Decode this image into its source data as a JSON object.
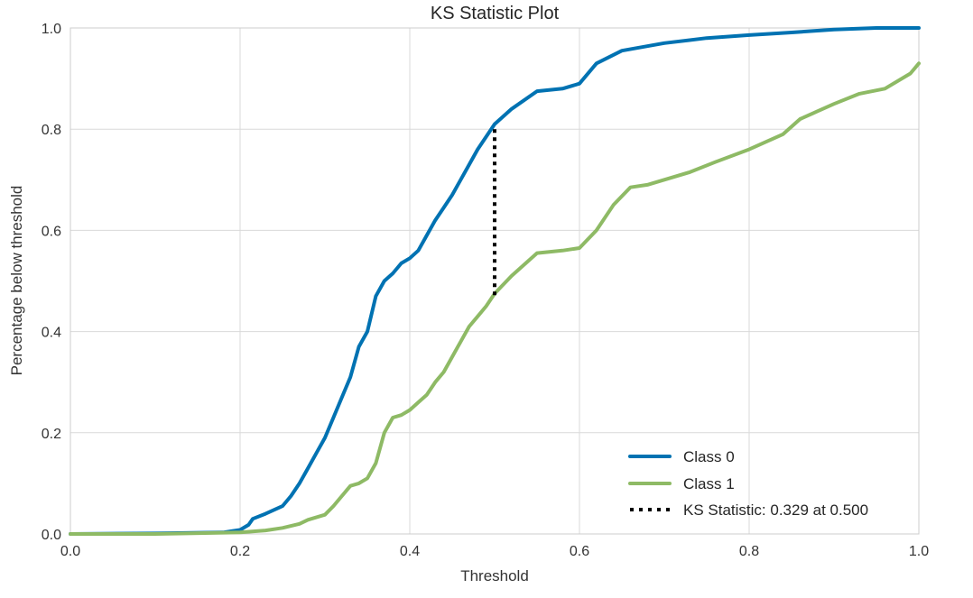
{
  "chart_data": {
    "type": "line",
    "title": "KS Statistic Plot",
    "xlabel": "Threshold",
    "ylabel": "Percentage below threshold",
    "xlim": [
      0.0,
      1.0
    ],
    "ylim": [
      0.0,
      1.0
    ],
    "grid": true,
    "legend_position": "bottom-right",
    "x_ticks": [
      "0.0",
      "0.2",
      "0.4",
      "0.6",
      "0.8",
      "1.0"
    ],
    "y_ticks": [
      "0.0",
      "0.2",
      "0.4",
      "0.6",
      "0.8",
      "1.0"
    ],
    "series": [
      {
        "name": "Class 0",
        "color": "#0072B2",
        "x": [
          0.0,
          0.1,
          0.18,
          0.2,
          0.21,
          0.215,
          0.23,
          0.25,
          0.26,
          0.27,
          0.28,
          0.29,
          0.3,
          0.31,
          0.32,
          0.33,
          0.34,
          0.35,
          0.36,
          0.37,
          0.38,
          0.39,
          0.4,
          0.41,
          0.42,
          0.43,
          0.44,
          0.45,
          0.46,
          0.47,
          0.48,
          0.49,
          0.5,
          0.52,
          0.55,
          0.58,
          0.6,
          0.62,
          0.65,
          0.7,
          0.75,
          0.8,
          0.85,
          0.9,
          0.95,
          1.0
        ],
        "y": [
          0.0,
          0.001,
          0.003,
          0.008,
          0.018,
          0.03,
          0.04,
          0.055,
          0.075,
          0.1,
          0.13,
          0.16,
          0.19,
          0.23,
          0.27,
          0.31,
          0.37,
          0.4,
          0.47,
          0.5,
          0.515,
          0.535,
          0.545,
          0.56,
          0.59,
          0.62,
          0.645,
          0.67,
          0.7,
          0.73,
          0.76,
          0.785,
          0.81,
          0.84,
          0.875,
          0.88,
          0.89,
          0.93,
          0.955,
          0.97,
          0.98,
          0.986,
          0.991,
          0.997,
          1.0,
          1.0
        ]
      },
      {
        "name": "Class 1",
        "color": "#8EBA65",
        "x": [
          0.0,
          0.1,
          0.2,
          0.23,
          0.25,
          0.27,
          0.28,
          0.3,
          0.31,
          0.32,
          0.33,
          0.34,
          0.35,
          0.36,
          0.37,
          0.38,
          0.39,
          0.4,
          0.41,
          0.42,
          0.43,
          0.44,
          0.45,
          0.46,
          0.47,
          0.48,
          0.49,
          0.5,
          0.52,
          0.55,
          0.58,
          0.6,
          0.62,
          0.64,
          0.66,
          0.68,
          0.7,
          0.73,
          0.76,
          0.8,
          0.84,
          0.86,
          0.88,
          0.9,
          0.93,
          0.96,
          0.99,
          1.0
        ],
        "y": [
          0.0,
          0.0,
          0.003,
          0.007,
          0.012,
          0.02,
          0.028,
          0.038,
          0.055,
          0.075,
          0.095,
          0.1,
          0.11,
          0.14,
          0.2,
          0.23,
          0.235,
          0.245,
          0.26,
          0.275,
          0.3,
          0.32,
          0.35,
          0.38,
          0.41,
          0.43,
          0.45,
          0.475,
          0.51,
          0.555,
          0.56,
          0.565,
          0.6,
          0.65,
          0.685,
          0.69,
          0.7,
          0.715,
          0.735,
          0.76,
          0.79,
          0.82,
          0.835,
          0.85,
          0.87,
          0.88,
          0.91,
          0.93
        ]
      }
    ],
    "ks_statistic": {
      "label": "KS Statistic: 0.329 at 0.500",
      "x": 0.5,
      "y0": 0.47,
      "y1": 0.8,
      "color": "#000000"
    }
  }
}
